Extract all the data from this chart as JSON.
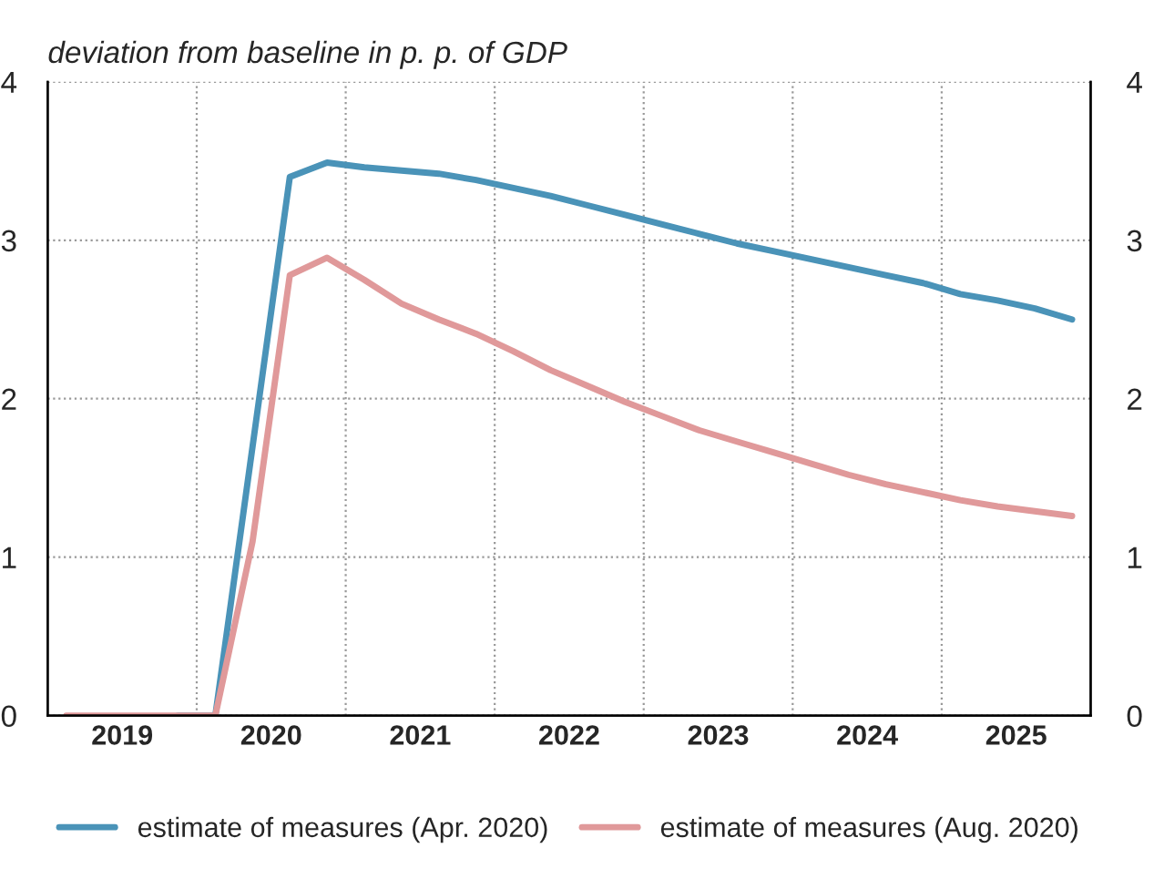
{
  "chart_data": {
    "type": "line",
    "ylabel": "deviation from baseline in p. p. of GDP",
    "x": [
      2019.125,
      2019.375,
      2019.625,
      2019.875,
      2020.125,
      2020.375,
      2020.625,
      2020.875,
      2021.125,
      2021.375,
      2021.625,
      2021.875,
      2022.125,
      2022.375,
      2022.625,
      2022.875,
      2023.125,
      2023.375,
      2023.625,
      2023.875,
      2024.125,
      2024.375,
      2024.625,
      2024.875,
      2025.125,
      2025.375,
      2025.625,
      2025.875
    ],
    "series": [
      {
        "name": "estimate of measures (Apr. 2020)",
        "color": "#4a93b8",
        "values": [
          null,
          null,
          null,
          0,
          0,
          1.7,
          3.4,
          3.49,
          3.46,
          3.44,
          3.42,
          3.38,
          3.33,
          3.28,
          3.22,
          3.16,
          3.1,
          3.04,
          2.98,
          2.93,
          2.88,
          2.83,
          2.78,
          2.73,
          2.66,
          2.62,
          2.57,
          2.5
        ]
      },
      {
        "name": "estimate of measures (Aug. 2020)",
        "color": "#e0999a",
        "values": [
          0,
          0,
          0,
          0,
          0,
          1.1,
          2.78,
          2.89,
          2.75,
          2.6,
          2.5,
          2.41,
          2.3,
          2.18,
          2.08,
          1.98,
          1.89,
          1.8,
          1.73,
          1.66,
          1.59,
          1.52,
          1.46,
          1.41,
          1.36,
          1.32,
          1.29,
          1.26
        ]
      }
    ],
    "xlim": [
      2019,
      2026
    ],
    "xticks": [
      {
        "value": 2019.5,
        "label": "2019"
      },
      {
        "value": 2020,
        "label": null
      },
      {
        "value": 2020.5,
        "label": "2020"
      },
      {
        "value": 2021,
        "label": null
      },
      {
        "value": 2021.5,
        "label": "2021"
      },
      {
        "value": 2022,
        "label": null
      },
      {
        "value": 2022.5,
        "label": "2022"
      },
      {
        "value": 2023,
        "label": null
      },
      {
        "value": 2023.5,
        "label": "2023"
      },
      {
        "value": 2024,
        "label": null
      },
      {
        "value": 2024.5,
        "label": "2024"
      },
      {
        "value": 2025,
        "label": null
      },
      {
        "value": 2025.5,
        "label": "2025"
      }
    ],
    "ylim": [
      0,
      4
    ],
    "yticks": [
      0,
      1,
      2,
      3,
      4
    ],
    "y2lim": [
      0,
      4
    ],
    "y2ticks": [
      0,
      1,
      2,
      3,
      4
    ],
    "grid": true,
    "legend": "bottom",
    "marker": "none",
    "line_style": "solid"
  }
}
